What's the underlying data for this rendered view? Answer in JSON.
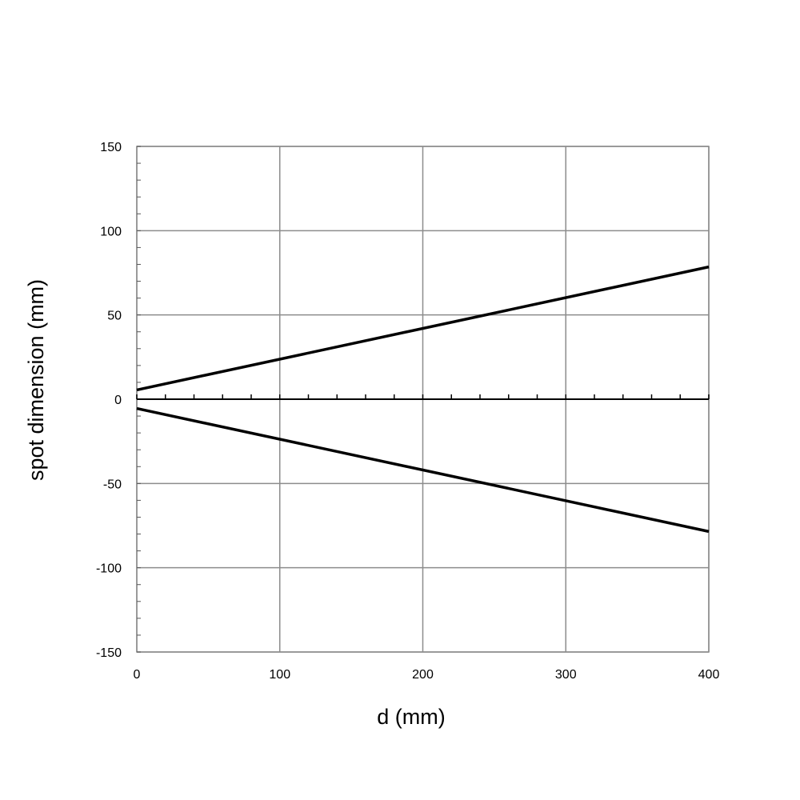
{
  "chart_data": {
    "type": "line",
    "xlabel": "d (mm)",
    "ylabel": "spot dimension (mm)",
    "xlim": [
      0,
      400
    ],
    "ylim": [
      -150,
      150
    ],
    "x_ticks": [
      "0",
      "100",
      "200",
      "300",
      "400"
    ],
    "y_ticks": [
      "150",
      "100",
      "50",
      "0",
      "-50",
      "-100",
      "-150"
    ],
    "grid": true,
    "legend": "none",
    "line_color": "#000000",
    "grid_color": "#8c8c8c",
    "series": [
      {
        "x": [
          0,
          400
        ],
        "y": [
          5.5,
          78.5
        ]
      },
      {
        "x": [
          0,
          400
        ],
        "y": [
          -5.5,
          -78.5
        ]
      }
    ]
  }
}
